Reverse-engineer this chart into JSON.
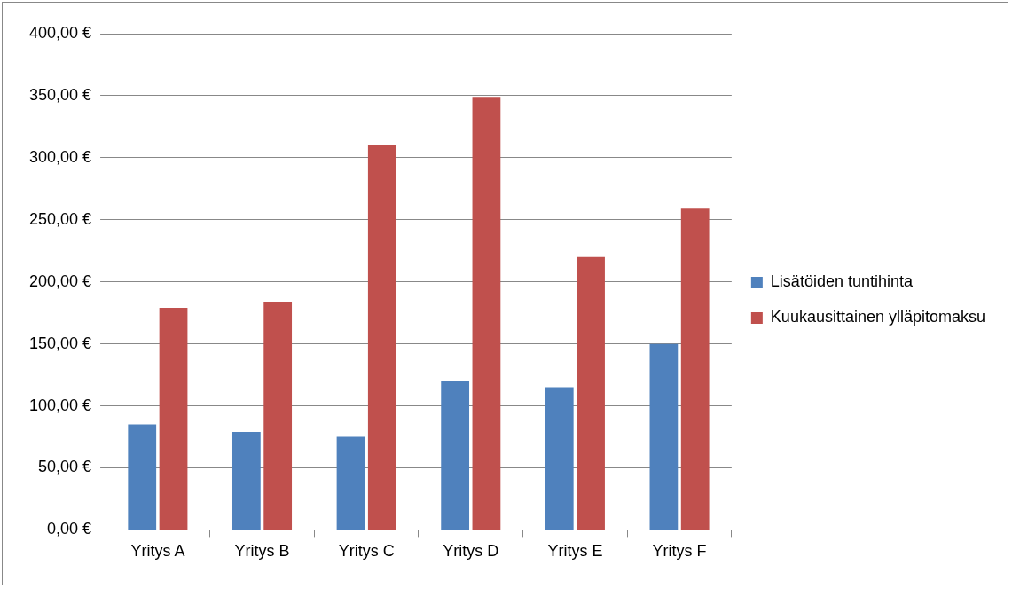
{
  "chart_data": {
    "type": "bar",
    "categories": [
      "Yritys A",
      "Yritys B",
      "Yritys C",
      "Yritys D",
      "Yritys E",
      "Yritys F"
    ],
    "series": [
      {
        "name": "Lisätöiden tuntihinta",
        "color": "#4f81bd",
        "values": [
          85,
          79,
          75,
          120,
          115,
          150
        ]
      },
      {
        "name": "Kuukausittainen ylläpitomaksu",
        "color": "#c0504d",
        "values": [
          179,
          184,
          310,
          349,
          220,
          259
        ]
      }
    ],
    "ylim": [
      0,
      400
    ],
    "yticks": [
      {
        "value": 0,
        "label": "0,00 €"
      },
      {
        "value": 50,
        "label": "50,00 €"
      },
      {
        "value": 100,
        "label": "100,00 €"
      },
      {
        "value": 150,
        "label": "150,00 €"
      },
      {
        "value": 200,
        "label": "200,00 €"
      },
      {
        "value": 250,
        "label": "250,00 €"
      },
      {
        "value": 300,
        "label": "300,00 €"
      },
      {
        "value": 350,
        "label": "350,00 €"
      },
      {
        "value": 400,
        "label": "400,00 €"
      }
    ],
    "grid": "y",
    "legend": "right"
  }
}
